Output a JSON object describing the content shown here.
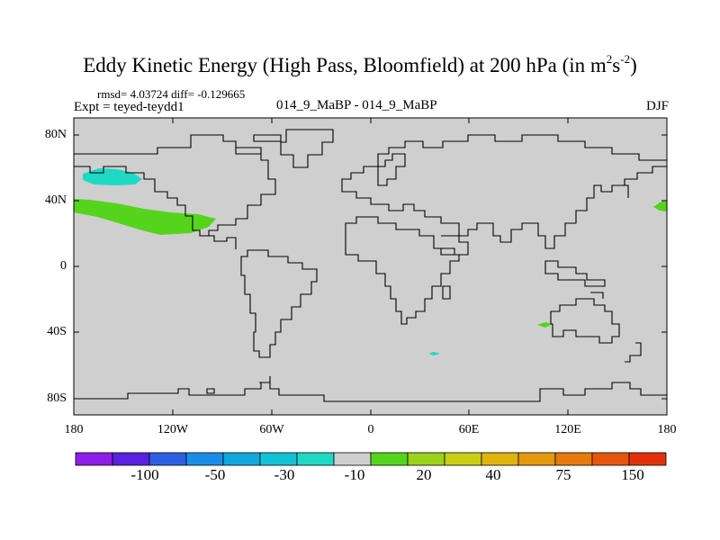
{
  "title": {
    "main": "Eddy Kinetic Energy (High Pass, Bloomfield) at 200 hPa (in m",
    "sup1": "2",
    "mid": "s",
    "sup2": "-2",
    "close": ")"
  },
  "stats": "rmsd= 4.03724 diff= -0.129665",
  "expt": "Expt = teyed-teydd1",
  "case": "014_9_MaBP - 014_9_MaBP",
  "season": "DJF",
  "lat_labels": [
    "80N",
    "40N",
    "0",
    "40S",
    "80S"
  ],
  "lon_labels": [
    "180",
    "120W",
    "60W",
    "0",
    "60E",
    "120E",
    "180"
  ],
  "colorbar": {
    "colors": [
      "#8f1ee8",
      "#5a21e0",
      "#2d5fe2",
      "#1a8ee6",
      "#10a8dc",
      "#12c3d8",
      "#1fd9c4",
      "#cfcfcf",
      "#55d41e",
      "#9bd21a",
      "#c9cf14",
      "#e0b40e",
      "#e49a0c",
      "#e67a0c",
      "#e6560c",
      "#e3310e"
    ],
    "labels": [
      "-100",
      "-50",
      "-30",
      "-10",
      "20",
      "40",
      "75",
      "150"
    ]
  },
  "map": {
    "ocean_color": "#cfcfcf",
    "anomaly_colors": {
      "positive_20": "#55d41e",
      "negative_10": "#1fd9c4"
    }
  }
}
